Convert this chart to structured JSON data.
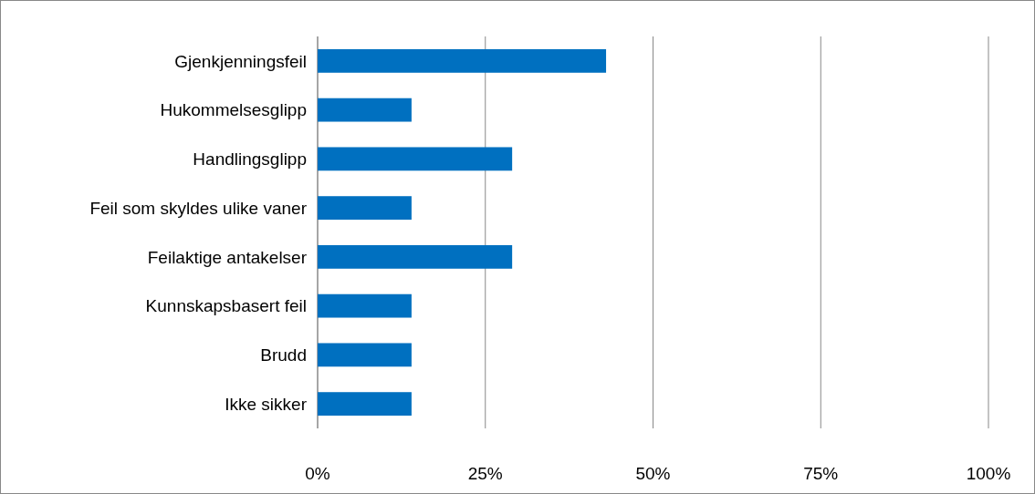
{
  "chart_data": {
    "type": "bar",
    "orientation": "horizontal",
    "categories": [
      "Gjenkjenningsfeil",
      "Hukommelsesglipp",
      "Handlingsglipp",
      "Feil som skyldes ulike vaner",
      "Feilaktige antakelser",
      "Kunnskapsbasert feil",
      "Brudd",
      "Ikke sikker"
    ],
    "values": [
      43,
      14,
      29,
      14,
      29,
      14,
      14,
      14
    ],
    "color": "#0070c0",
    "xlim": [
      0,
      100
    ],
    "xticks": [
      {
        "value": 0,
        "label": "0%"
      },
      {
        "value": 25,
        "label": "25%"
      },
      {
        "value": 50,
        "label": "50%"
      },
      {
        "value": 75,
        "label": "75%"
      },
      {
        "value": 100,
        "label": "100%"
      }
    ],
    "grid": "x"
  }
}
